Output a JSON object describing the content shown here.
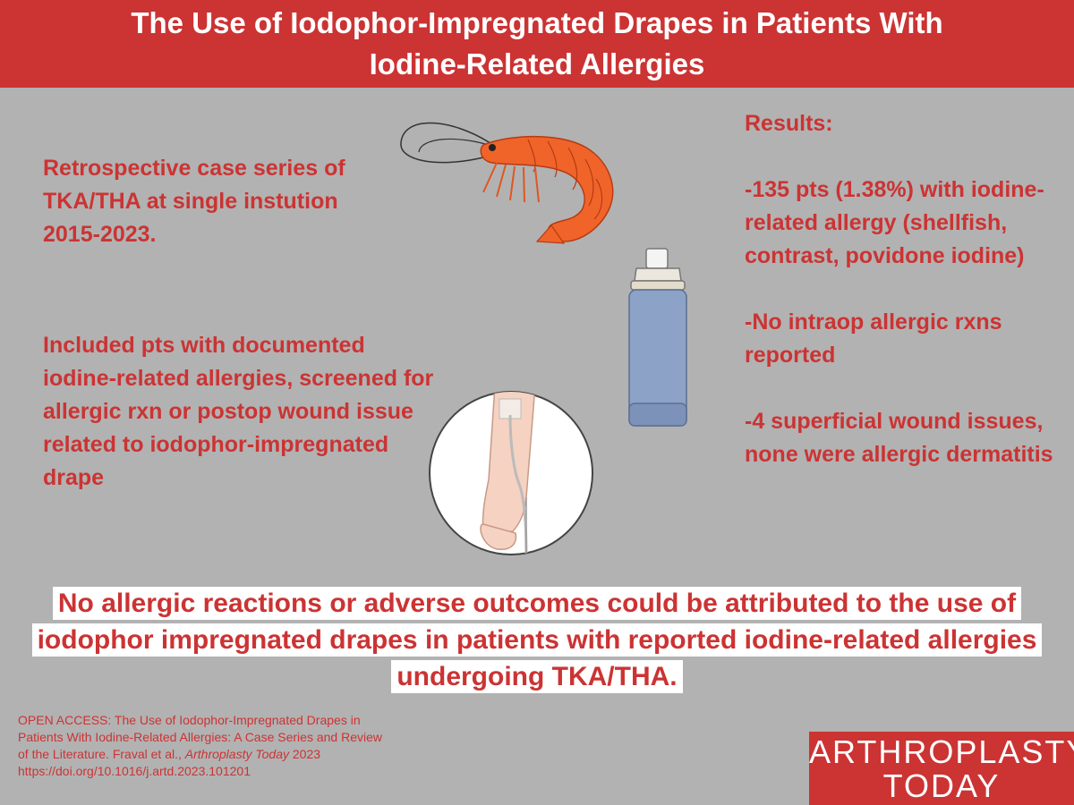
{
  "header": {
    "title_line1": "The Use of Iodophor-Impregnated Drapes in Patients With",
    "title_line2": "Iodine-Related Allergies"
  },
  "left": {
    "intro": "Retrospective case series of TKA/THA at single instution 2015-2023.",
    "included": "Included pts with documented iodine-related allergies, screened for allergic rxn or postop wound issue related to iodophor-impregnated drape"
  },
  "results": {
    "heading": "Results:",
    "items": [
      "-135 pts (1.38%) with iodine-related allergy (shellfish, contrast, povidone iodine)",
      "-No intraop allergic rxns reported",
      "-4 superficial wound issues, none were allergic dermatitis"
    ]
  },
  "conclusion": {
    "line1": "No allergic reactions or adverse outcomes could be attributed to the use of",
    "line2": "iodophor impregnated drapes in patients with reported iodine-related allergies",
    "line3": "undergoing TKA/THA."
  },
  "citation": {
    "part1": "OPEN ACCESS: The Use of Iodophor-Impregnated Drapes in Patients With Iodine-Related Allergies: A Case Series and Review of the Literature. Fraval et al., ",
    "journal": "Arthroplasty Today",
    "part2": " 2023 https://doi.org/10.1016/j.artd.2023.101201"
  },
  "logo": {
    "line1": "ARTHROPLASTY",
    "line2": "TODAY"
  },
  "colors": {
    "brand_red": "#cc3333",
    "background": "#b2b2b2",
    "shrimp": "#f0642a",
    "bottle": "#8da2c7"
  },
  "icons": [
    "shrimp-icon",
    "spray-bottle-icon",
    "iv-arm-icon"
  ]
}
